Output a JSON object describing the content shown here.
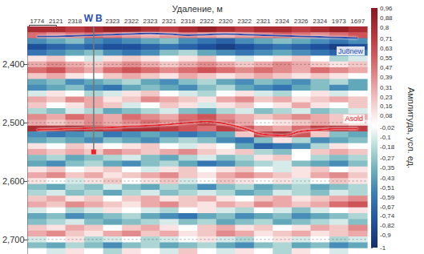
{
  "chart_data": {
    "type": "heatmap",
    "panel_label": "В",
    "x_label": "Удаление, м",
    "categories": [
      "1774",
      "2121",
      "2318",
      null,
      "2323",
      "2322",
      "2323",
      "2321",
      "2318",
      "2322",
      "2320",
      "2322",
      "2321",
      "2324",
      "2326",
      "2324",
      "1973",
      "1697"
    ],
    "ylim": [
      2335,
      2725
    ],
    "yticks": [
      2400,
      2500,
      2600,
      2700
    ],
    "grid": true,
    "times": [
      2340,
      2350,
      2360,
      2370,
      2380,
      2390,
      2400,
      2410,
      2420,
      2430,
      2440,
      2450,
      2460,
      2470,
      2480,
      2490,
      2500,
      2510,
      2520,
      2530,
      2540,
      2550,
      2560,
      2570,
      2580,
      2590,
      2600,
      2610,
      2620,
      2630,
      2640,
      2650,
      2660,
      2670,
      2680,
      2690,
      2700,
      2710,
      2720
    ],
    "amplitude": [
      [
        0.8,
        0.8,
        0.7,
        0.8,
        0.9,
        0.9,
        0.8,
        0.7,
        0.8,
        0.9,
        0.8,
        0.7,
        0.8,
        0.8,
        0.7,
        0.8,
        0.9,
        0.8
      ],
      [
        0.5,
        0.4,
        0.5,
        0.6,
        0.5,
        0.4,
        0.3,
        0.4,
        0.5,
        0.4,
        0.3,
        0.4,
        0.5,
        0.6,
        0.5,
        0.4,
        0.5,
        0.6
      ],
      [
        -0.5,
        -0.4,
        -0.3,
        -0.5,
        -0.6,
        -0.5,
        -0.4,
        -0.3,
        -0.5,
        -0.6,
        -0.7,
        -0.5,
        -0.4,
        -0.3,
        -0.4,
        -0.5,
        -0.6,
        -0.5
      ],
      [
        -0.8,
        -0.7,
        -0.6,
        -0.7,
        -0.8,
        -0.8,
        -0.7,
        -0.6,
        -0.7,
        -0.8,
        -0.9,
        -0.8,
        -0.7,
        -0.6,
        -0.7,
        -0.8,
        -0.9,
        -0.8
      ],
      [
        -0.6,
        -0.5,
        -0.4,
        -0.3,
        -0.5,
        -0.6,
        -0.5,
        -0.3,
        -0.2,
        -0.4,
        -0.5,
        -0.6,
        -0.5,
        -0.4,
        -0.5,
        -0.6,
        -0.7,
        -0.6
      ],
      [
        0.1,
        0.2,
        0.0,
        -0.1,
        0.1,
        0.2,
        0.1,
        0.0,
        0.1,
        0.2,
        0.0,
        -0.1,
        0.0,
        0.1,
        0.2,
        0.0,
        -0.2,
        -0.1
      ],
      [
        0.3,
        0.4,
        0.3,
        0.2,
        0.3,
        0.4,
        0.3,
        0.2,
        0.3,
        0.4,
        0.3,
        0.2,
        0.3,
        0.4,
        0.3,
        0.2,
        0.1,
        0.2
      ],
      [
        0.5,
        0.6,
        0.4,
        0.3,
        0.5,
        0.6,
        0.5,
        0.4,
        0.5,
        0.6,
        0.5,
        0.4,
        0.5,
        0.4,
        0.3,
        0.5,
        0.4,
        0.3
      ],
      [
        0.2,
        0.3,
        0.1,
        0.0,
        0.2,
        0.3,
        0.2,
        0.1,
        0.3,
        0.2,
        0.1,
        0.2,
        0.3,
        0.2,
        0.1,
        0.2,
        0.1,
        0.0
      ],
      [
        -0.4,
        -0.3,
        -0.5,
        -0.4,
        -0.3,
        -0.2,
        -0.4,
        -0.5,
        -0.3,
        -0.2,
        -0.4,
        -0.5,
        -0.3,
        -0.4,
        -0.5,
        -0.3,
        -0.2,
        -0.4
      ],
      [
        -0.5,
        -0.4,
        -0.3,
        -0.5,
        -0.6,
        -0.4,
        -0.3,
        -0.4,
        -0.5,
        -0.3,
        -0.2,
        -0.4,
        -0.5,
        -0.6,
        -0.4,
        -0.3,
        -0.5,
        -0.4
      ],
      [
        -0.1,
        0.1,
        0.0,
        -0.2,
        -0.1,
        0.1,
        0.2,
        0.0,
        -0.1,
        -0.2,
        0.0,
        0.1,
        -0.1,
        -0.2,
        0.0,
        0.1,
        -0.1,
        0.0
      ],
      [
        0.3,
        0.2,
        0.4,
        0.3,
        0.1,
        0.2,
        0.4,
        0.3,
        0.2,
        0.1,
        0.3,
        0.4,
        0.2,
        0.3,
        0.1,
        0.2,
        0.3,
        0.2
      ],
      [
        0.2,
        0.0,
        0.1,
        0.3,
        0.2,
        -0.1,
        0.0,
        0.2,
        0.1,
        -0.1,
        0.1,
        0.2,
        0.0,
        0.1,
        0.3,
        0.1,
        0.0,
        0.2
      ],
      [
        -0.2,
        -0.3,
        -0.1,
        -0.2,
        -0.4,
        -0.3,
        -0.2,
        -0.1,
        -0.3,
        -0.4,
        -0.2,
        -0.1,
        -0.3,
        -0.2,
        -0.1,
        -0.3,
        -0.2,
        -0.1
      ],
      [
        0.4,
        0.3,
        0.5,
        0.4,
        0.3,
        0.5,
        0.4,
        0.3,
        0.5,
        0.6,
        0.4,
        0.3,
        0.2,
        0.3,
        0.4,
        0.3,
        0.2,
        0.3
      ],
      [
        0.3,
        0.2,
        0.3,
        0.4,
        0.3,
        0.4,
        0.5,
        0.4,
        0.6,
        0.7,
        0.5,
        0.3,
        0.0,
        0.1,
        0.2,
        0.3,
        0.2,
        0.1
      ],
      [
        0.8,
        0.8,
        0.9,
        0.8,
        0.7,
        0.8,
        0.8,
        0.7,
        0.6,
        0.5,
        0.7,
        0.6,
        0.4,
        0.3,
        0.5,
        0.7,
        0.8,
        0.7
      ],
      [
        -0.5,
        -0.6,
        -0.5,
        -0.4,
        -0.6,
        -0.5,
        -0.4,
        -0.5,
        -0.6,
        -0.5,
        -0.4,
        0.2,
        0.7,
        0.8,
        0.6,
        0.2,
        -0.3,
        -0.4
      ],
      [
        -0.4,
        -0.3,
        -0.4,
        -0.5,
        -0.3,
        -0.4,
        -0.5,
        -0.3,
        -0.2,
        -0.3,
        -0.5,
        -0.6,
        -0.3,
        0.1,
        -0.2,
        -0.5,
        -0.4,
        -0.3
      ],
      [
        0.1,
        0.0,
        0.2,
        0.1,
        0.0,
        0.1,
        0.2,
        0.0,
        -0.1,
        0.1,
        0.0,
        -0.4,
        -0.7,
        -0.6,
        -0.5,
        -0.2,
        0.1,
        0.0
      ],
      [
        0.3,
        0.2,
        0.3,
        0.2,
        0.4,
        0.3,
        0.2,
        0.3,
        0.4,
        0.2,
        0.1,
        0.2,
        -0.2,
        -0.3,
        0.0,
        0.2,
        0.3,
        0.2
      ],
      [
        -0.3,
        -0.2,
        -0.4,
        -0.3,
        -0.2,
        -0.1,
        -0.3,
        -0.4,
        -0.2,
        -0.1,
        -0.3,
        -0.2,
        0.1,
        0.2,
        0.0,
        -0.2,
        -0.3,
        -0.2
      ],
      [
        -0.4,
        -0.5,
        -0.3,
        -0.2,
        -0.4,
        -0.5,
        -0.3,
        -0.2,
        -0.4,
        -0.6,
        -0.5,
        -0.3,
        -0.2,
        -0.1,
        -0.3,
        -0.4,
        -0.5,
        -0.3
      ],
      [
        0.1,
        0.2,
        0.0,
        0.1,
        0.2,
        0.0,
        -0.1,
        0.1,
        0.2,
        0.0,
        0.1,
        0.2,
        0.0,
        -0.1,
        0.1,
        0.2,
        0.0,
        0.1
      ],
      [
        0.3,
        0.4,
        0.2,
        0.3,
        0.1,
        0.2,
        0.3,
        0.4,
        0.2,
        0.1,
        0.3,
        0.4,
        0.3,
        0.2,
        0.1,
        0.3,
        0.4,
        0.2
      ],
      [
        0.1,
        0.0,
        -0.1,
        0.1,
        0.2,
        0.0,
        0.1,
        0.2,
        -0.1,
        0.0,
        0.2,
        0.1,
        0.0,
        0.1,
        -0.1,
        0.0,
        0.2,
        0.1
      ],
      [
        -0.3,
        -0.4,
        -0.2,
        -0.3,
        -0.1,
        -0.3,
        -0.4,
        -0.2,
        -0.3,
        -0.5,
        -0.3,
        -0.2,
        -0.4,
        -0.3,
        -0.2,
        -0.4,
        -0.3,
        -0.2
      ],
      [
        -0.2,
        -0.1,
        -0.3,
        -0.2,
        -0.4,
        -0.2,
        -0.1,
        -0.3,
        -0.2,
        -0.1,
        -0.2,
        -0.4,
        -0.3,
        -0.1,
        -0.2,
        -0.3,
        -0.1,
        -0.2
      ],
      [
        0.2,
        0.3,
        0.1,
        0.2,
        0.0,
        0.2,
        0.3,
        0.1,
        0.2,
        0.3,
        0.1,
        0.0,
        0.2,
        0.3,
        0.1,
        0.2,
        0.3,
        0.4
      ],
      [
        0.3,
        0.2,
        0.4,
        0.3,
        0.2,
        0.1,
        0.3,
        0.4,
        0.2,
        0.1,
        0.3,
        0.2,
        0.4,
        0.3,
        0.2,
        0.3,
        0.5,
        0.6
      ],
      [
        -0.1,
        0.0,
        -0.2,
        -0.1,
        0.1,
        0.0,
        -0.1,
        -0.2,
        0.0,
        0.1,
        -0.1,
        -0.2,
        0.0,
        -0.1,
        -0.3,
        -0.1,
        0.0,
        0.1
      ],
      [
        -0.4,
        -0.3,
        -0.5,
        -0.4,
        -0.3,
        -0.2,
        -0.4,
        -0.5,
        -0.6,
        -0.4,
        -0.3,
        -0.5,
        -0.4,
        -0.3,
        -0.5,
        -0.4,
        -0.3,
        -0.2
      ],
      [
        -0.3,
        -0.2,
        -0.1,
        -0.3,
        -0.4,
        -0.3,
        -0.2,
        -0.1,
        -0.3,
        -0.2,
        -0.4,
        -0.3,
        -0.2,
        -0.4,
        -0.3,
        -0.2,
        -0.1,
        -0.3
      ],
      [
        0.2,
        0.1,
        0.3,
        0.2,
        0.0,
        0.2,
        0.3,
        0.1,
        0.0,
        0.2,
        0.3,
        0.1,
        0.2,
        0.0,
        0.1,
        0.3,
        0.2,
        0.4
      ],
      [
        0.3,
        0.4,
        0.2,
        0.1,
        0.3,
        0.4,
        0.2,
        0.3,
        0.1,
        0.2,
        0.4,
        0.3,
        0.1,
        0.2,
        0.3,
        0.1,
        0.2,
        0.3
      ],
      [
        -0.1,
        0.0,
        0.1,
        -0.2,
        -0.1,
        0.0,
        -0.2,
        -0.1,
        0.0,
        0.1,
        -0.1,
        -0.2,
        0.0,
        0.1,
        -0.1,
        0.0,
        -0.2,
        -0.1
      ],
      [
        -0.3,
        -0.4,
        -0.2,
        -0.3,
        -0.5,
        -0.3,
        -0.2,
        -0.4,
        -0.3,
        -0.2,
        -0.4,
        -0.5,
        -0.3,
        -0.2,
        -0.4,
        -0.3,
        -0.5,
        -0.4
      ],
      [
        0.0,
        -0.1,
        0.1,
        0.0,
        -0.2,
        0.1,
        0.0,
        -0.1,
        0.2,
        0.0,
        -0.1,
        0.1,
        0.0,
        -0.2,
        0.1,
        0.0,
        -0.1,
        0.0
      ]
    ],
    "horizons": [
      {
        "name": "Ju8new",
        "color": "#2a4fb0",
        "values": [
          2352,
          2352,
          2351,
          2350,
          2349,
          2348,
          2347,
          2348,
          2350,
          2349,
          2348,
          2349,
          2350,
          2351,
          2352,
          2353,
          2354,
          2355
        ]
      },
      {
        "name": "Asold",
        "color": "#e8232a",
        "values": [
          2512,
          2511,
          2510,
          2509,
          2508,
          2506,
          2505,
          2503,
          2500,
          2498,
          2502,
          2510,
          2520,
          2522,
          2515,
          2512,
          2510,
          2510
        ]
      }
    ],
    "well": {
      "labels": [
        "W",
        "B"
      ],
      "x": 3,
      "depth": 2550
    },
    "colorbar": {
      "label": "Амплитуда, усл. ед.",
      "range": [
        -1,
        0.96
      ],
      "ticks": [
        {
          "value": 0.96,
          "label": "0,96"
        },
        {
          "value": 0.88,
          "label": "0,88"
        },
        {
          "value": 0.8,
          "label": "0,8"
        },
        {
          "value": 0.71,
          "label": "0,71"
        },
        {
          "value": 0.63,
          "label": "0,63"
        },
        {
          "value": 0.55,
          "label": "0,55"
        },
        {
          "value": 0.47,
          "label": "0,47"
        },
        {
          "value": 0.39,
          "label": "0,39"
        },
        {
          "value": 0.31,
          "label": "0,31"
        },
        {
          "value": 0.23,
          "label": "0,23"
        },
        {
          "value": 0.16,
          "label": "0,16"
        },
        {
          "value": 0.08,
          "label": "0,08"
        },
        {
          "value": -0.02,
          "label": "-0,02"
        },
        {
          "value": -0.1,
          "label": "-0,1"
        },
        {
          "value": -0.18,
          "label": "-0,18"
        },
        {
          "value": -0.27,
          "label": "-0,27"
        },
        {
          "value": -0.35,
          "label": "-0,35"
        },
        {
          "value": -0.43,
          "label": "-0,43"
        },
        {
          "value": -0.51,
          "label": "-0,51"
        },
        {
          "value": -0.59,
          "label": "-0,59"
        },
        {
          "value": -0.67,
          "label": "-0,67"
        },
        {
          "value": -0.74,
          "label": "-0,74"
        },
        {
          "value": -0.82,
          "label": "-0,82"
        },
        {
          "value": -0.9,
          "label": "-0,9"
        },
        -1
      ]
    }
  }
}
